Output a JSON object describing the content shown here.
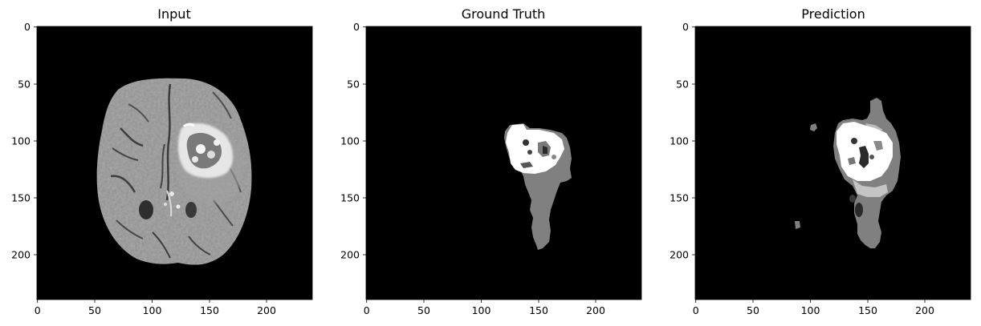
{
  "figure": {
    "panels": [
      {
        "id": "input",
        "title": "Input",
        "x_ticks": [
          "0",
          "50",
          "100",
          "150",
          "200"
        ],
        "y_ticks": [
          "0",
          "50",
          "100",
          "150",
          "200"
        ]
      },
      {
        "id": "ground-truth",
        "title": "Ground Truth",
        "x_ticks": [
          "0",
          "50",
          "100",
          "150",
          "200"
        ],
        "y_ticks": [
          "0",
          "50",
          "100",
          "150",
          "200"
        ]
      },
      {
        "id": "prediction",
        "title": "Prediction",
        "x_ticks": [
          "0",
          "50",
          "100",
          "150",
          "200"
        ],
        "y_ticks": [
          "0",
          "50",
          "100",
          "150",
          "200"
        ]
      }
    ],
    "colors": {
      "background": "#000000",
      "edema": "#808080",
      "core": "#ffffff",
      "dark_region": "#2a2a2a",
      "brain": "#8e8e8e"
    }
  }
}
